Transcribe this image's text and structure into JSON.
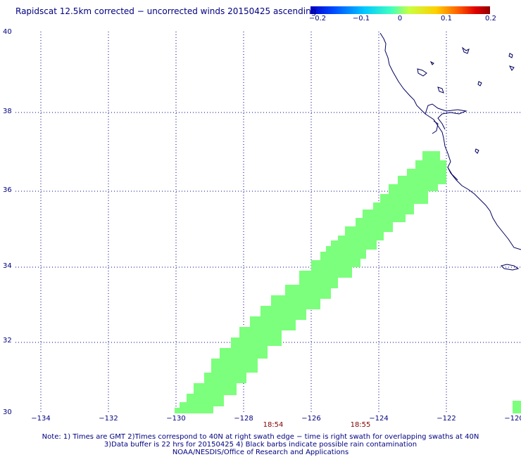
{
  "title": "Rapidscat 12.5km corrected − uncorrected winds 20150425 ascending",
  "colorbar": {
    "ticks": [
      "−0.2",
      "−0.1",
      "0",
      "0.1",
      "0.2"
    ],
    "min": -0.2,
    "max": 0.2,
    "colors": [
      "#0000c8",
      "#0044ff",
      "#00c8ff",
      "#40ffc0",
      "#c8ff40",
      "#ffd000",
      "#ff6000",
      "#e00000",
      "#900000"
    ]
  },
  "axes": {
    "lat_labels": [
      "40",
      "38",
      "36",
      "34",
      "32",
      "30"
    ],
    "lon_labels": [
      "−134",
      "−132",
      "−130",
      "−128",
      "−126",
      "−124",
      "−122",
      "−120"
    ],
    "lat_range": [
      30,
      40
    ],
    "lon_range": [
      -134.8,
      -120
    ],
    "grid": true,
    "label_color": "#000080"
  },
  "times": [
    "18:54",
    "18:55"
  ],
  "swath": {
    "value": 0,
    "color": "#7cff7c"
  },
  "notes": [
    "Note: 1) Times are GMT 2)Times correspond to 40N at right swath edge − time is right swath for overlapping swaths at 40N",
    "3)Data buffer is 22 hrs for 20150425 4) Black barbs indicate possible rain contamination",
    "NOAA/NESDIS/Office of Research and Applications"
  ]
}
